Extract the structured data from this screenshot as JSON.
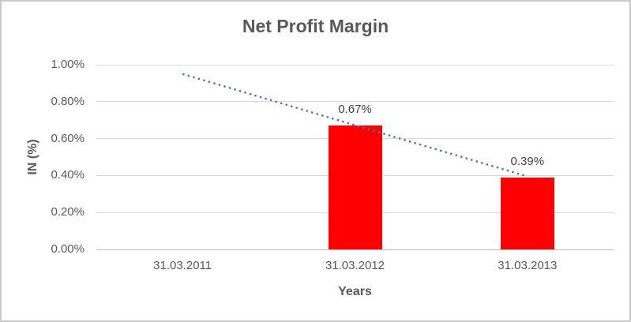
{
  "chart_data": {
    "type": "bar",
    "title": "Net Profit Margin",
    "xlabel": "Years",
    "ylabel": "IN (%)",
    "categories": [
      "31.03.2011",
      "31.03.2012",
      "31.03.2013"
    ],
    "values": [
      null,
      0.67,
      0.39
    ],
    "data_labels": [
      null,
      "0.67%",
      "0.39%"
    ],
    "ylim": [
      0,
      1.0
    ],
    "ytick_step": 0.2,
    "ytick_labels": [
      "0.00%",
      "0.20%",
      "0.40%",
      "0.60%",
      "0.80%",
      "1.00%"
    ],
    "grid": true,
    "legend": "none",
    "bar_color": "#ff0000",
    "text_color": "#595959",
    "gridline_color": "#d9d9d9",
    "trendline": {
      "type": "linear",
      "line_style": "dotted",
      "color": "#4472c4",
      "start_category_index": 0,
      "end_category_index": 2,
      "start_value": 0.95,
      "end_value": 0.395
    }
  }
}
